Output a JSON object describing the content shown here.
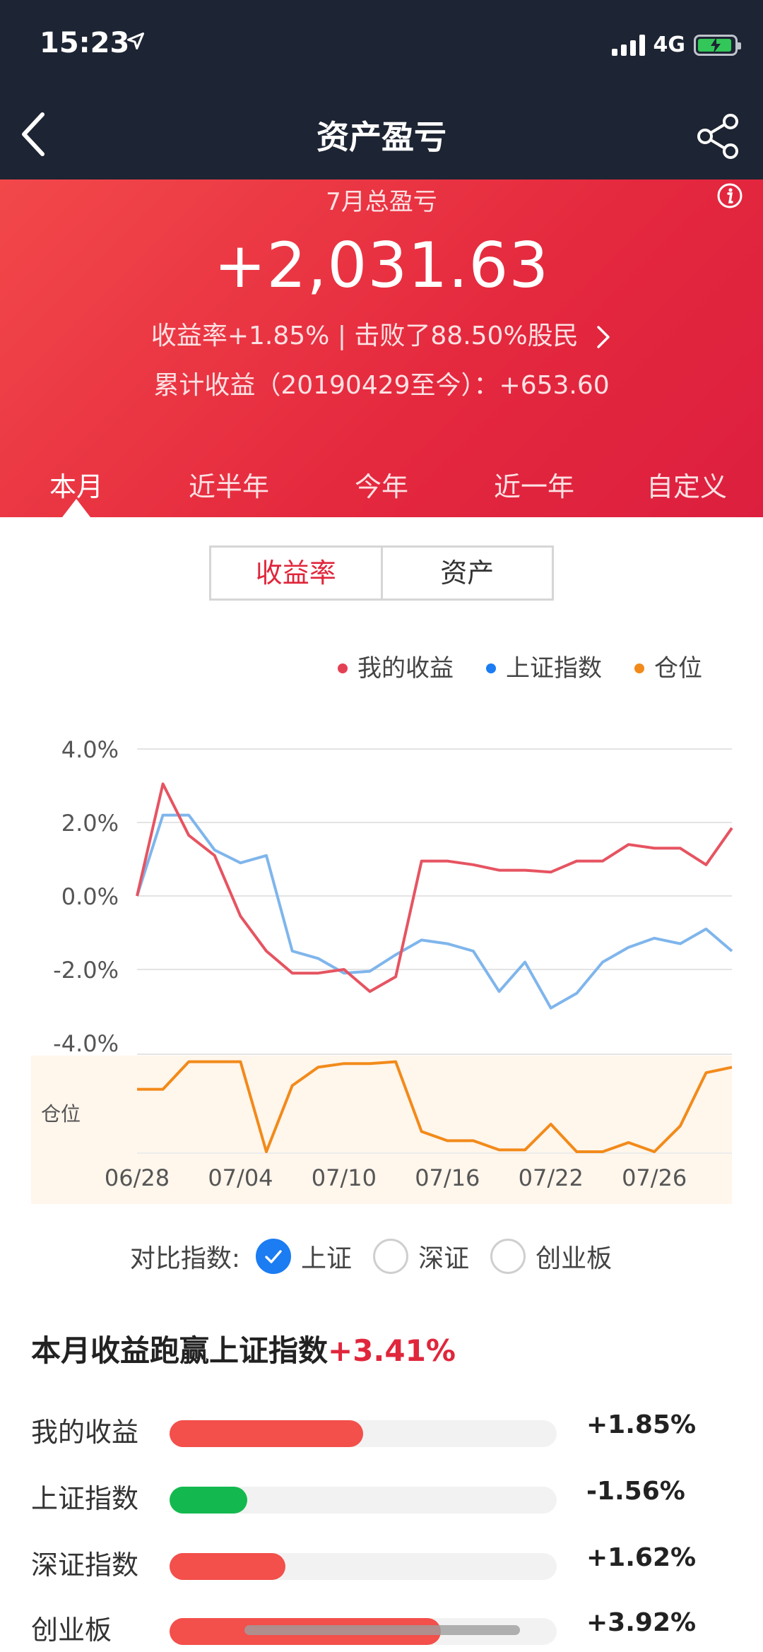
{
  "status": {
    "time": "15:23",
    "network": "4G"
  },
  "nav": {
    "title": "资产盈亏"
  },
  "hero": {
    "month_label": "7月总盈亏",
    "amount": "+2,031.63",
    "return_line": "收益率+1.85%  |  击败了88.50%股民",
    "cumulative_line": "累计收益（20190429至今）：+653.60"
  },
  "tabs": [
    {
      "label": "本月",
      "active": true
    },
    {
      "label": "近半年"
    },
    {
      "label": "今年"
    },
    {
      "label": "近一年"
    },
    {
      "label": "自定义"
    }
  ],
  "toggle": {
    "left": "收益率",
    "right": "资产"
  },
  "legend": [
    {
      "label": "我的收益",
      "color": "#e34153"
    },
    {
      "label": "上证指数",
      "color": "#1c7cf2"
    },
    {
      "label": "仓位",
      "color": "#f28a1a"
    }
  ],
  "chart_data": {
    "type": "line",
    "y_ticks": [
      "4.0%",
      "2.0%",
      "0.0%",
      "-2.0%",
      "-4.0%"
    ],
    "ylim": [
      -4,
      4
    ],
    "x_tick_labels": [
      "06/28",
      "07/04",
      "07/10",
      "07/16",
      "07/22",
      "07/26"
    ],
    "x_tick_index": [
      0,
      4,
      8,
      12,
      16,
      20
    ],
    "position_label": "仓位",
    "series": [
      {
        "name": "我的收益",
        "color": "#e34153",
        "values": [
          0.0,
          3.05,
          1.65,
          1.1,
          -0.55,
          -1.5,
          -2.1,
          -2.1,
          -2.0,
          -2.6,
          -2.2,
          0.95,
          0.95,
          0.85,
          0.7,
          0.7,
          0.65,
          0.95,
          0.95,
          1.4,
          1.3,
          1.3,
          0.85,
          1.85
        ]
      },
      {
        "name": "上证指数",
        "color": "#1c7cf2",
        "values": [
          0.0,
          2.2,
          2.2,
          1.25,
          0.9,
          1.1,
          -1.5,
          -1.7,
          -2.1,
          -2.05,
          -1.6,
          -1.2,
          -1.3,
          -1.5,
          -2.6,
          -1.8,
          -3.05,
          -2.65,
          -1.8,
          -1.4,
          -1.15,
          -1.3,
          -0.9,
          -1.5
        ]
      },
      {
        "name": "仓位",
        "color": "#f28a1a",
        "values": [
          0.68,
          0.68,
          0.98,
          0.98,
          0.98,
          0.0,
          0.72,
          0.92,
          0.96,
          0.96,
          0.98,
          0.22,
          0.12,
          0.12,
          0.02,
          0.02,
          0.3,
          0.0,
          0.0,
          0.1,
          0.0,
          0.28,
          0.86,
          0.92
        ]
      }
    ]
  },
  "compare": {
    "label": "对比指数:",
    "options": [
      {
        "label": "上证",
        "checked": true
      },
      {
        "label": "深证",
        "checked": false
      },
      {
        "label": "创业板",
        "checked": false
      }
    ]
  },
  "summary": {
    "title_prefix": "本月收益跑赢上证指数",
    "title_value": "+3.41%",
    "rows": [
      {
        "name": "我的收益",
        "value": "+1.85%",
        "fraction": 0.5,
        "color": "#f34f4b"
      },
      {
        "name": "上证指数",
        "value": "-1.56%",
        "fraction": 0.2,
        "color": "#13b94f"
      },
      {
        "name": "深证指数",
        "value": "+1.62%",
        "fraction": 0.3,
        "color": "#f34f4b"
      },
      {
        "name": "创业板",
        "value": "+3.92%",
        "fraction": 0.7,
        "color": "#f34f4b"
      }
    ]
  }
}
